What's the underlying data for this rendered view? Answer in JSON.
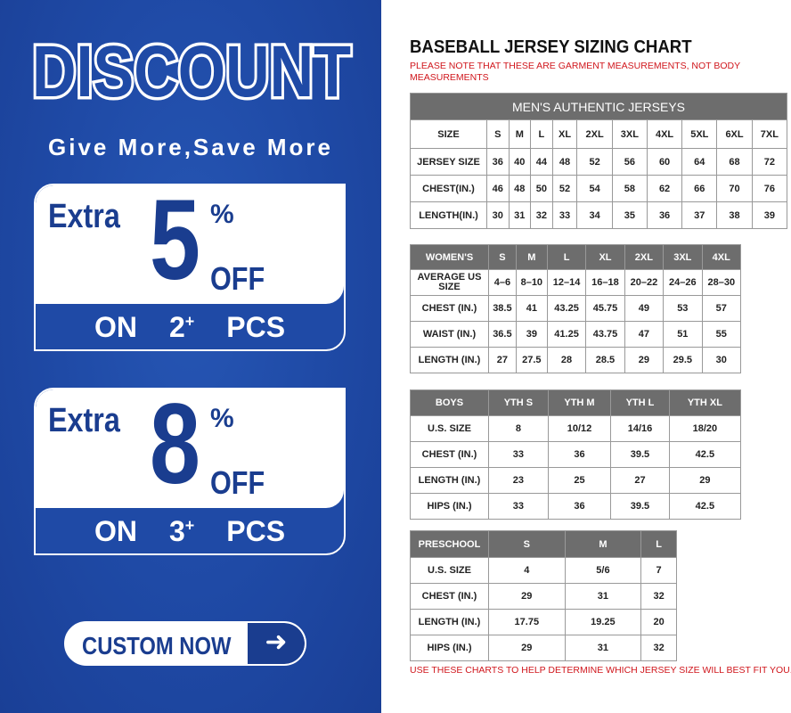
{
  "promo": {
    "headline": "DISCOUNT",
    "tagline": "Give More,Save More",
    "offers": [
      {
        "prefix": "Extra",
        "value": "5",
        "percent": "%",
        "off": "OFF",
        "on": "ON",
        "qty": "2",
        "plus": "+",
        "pcs": "PCS"
      },
      {
        "prefix": "Extra",
        "value": "8",
        "percent": "%",
        "off": "OFF",
        "on": "ON",
        "qty": "3",
        "plus": "+",
        "pcs": "PCS"
      }
    ],
    "button": "CUSTOM NOW",
    "button_icon": "arrow-right-icon",
    "colors": {
      "background": "#1f4aa6",
      "text_blue": "#1a3d8f",
      "note_red": "#d0161c",
      "header_gray": "#6d6d6d"
    }
  },
  "chart": {
    "title": "BASEBALL JERSEY SIZING CHART",
    "note": "PLEASE NOTE THAT THESE ARE GARMENT MEASUREMENTS, NOT BODY MEASUREMENTS",
    "footer": "USE THESE CHARTS TO HELP DETERMINE WHICH JERSEY SIZE WILL BEST FIT YOU."
  },
  "men": {
    "title": "MEN'S AUTHENTIC JERSEYS",
    "rows": [
      [
        "SIZE",
        "S",
        "M",
        "L",
        "XL",
        "2XL",
        "3XL",
        "4XL",
        "5XL",
        "6XL",
        "7XL"
      ],
      [
        "JERSEY SIZE",
        "36",
        "40",
        "44",
        "48",
        "52",
        "56",
        "60",
        "64",
        "68",
        "72"
      ],
      [
        "CHEST(IN.)",
        "46",
        "48",
        "50",
        "52",
        "54",
        "58",
        "62",
        "66",
        "70",
        "76"
      ],
      [
        "LENGTH(IN.)",
        "30",
        "31",
        "32",
        "33",
        "34",
        "35",
        "36",
        "37",
        "38",
        "39"
      ]
    ]
  },
  "women": {
    "header": [
      "WOMEN'S",
      "S",
      "M",
      "L",
      "XL",
      "2XL",
      "3XL",
      "4XL"
    ],
    "rows": [
      [
        "AVERAGE US SIZE",
        "4–6",
        "8–10",
        "12–14",
        "16–18",
        "20–22",
        "24–26",
        "28–30"
      ],
      [
        "CHEST (IN.)",
        "38.5",
        "41",
        "43.25",
        "45.75",
        "49",
        "53",
        "57"
      ],
      [
        "WAIST (IN.)",
        "36.5",
        "39",
        "41.25",
        "43.75",
        "47",
        "51",
        "55"
      ],
      [
        "LENGTH (IN.)",
        "27",
        "27.5",
        "28",
        "28.5",
        "29",
        "29.5",
        "30"
      ]
    ]
  },
  "boys": {
    "header": [
      "BOYS",
      "YTH S",
      "YTH M",
      "YTH L",
      "YTH XL"
    ],
    "rows": [
      [
        "U.S. SIZE",
        "8",
        "10/12",
        "14/16",
        "18/20"
      ],
      [
        "CHEST (IN.)",
        "33",
        "36",
        "39.5",
        "42.5"
      ],
      [
        "LENGTH (IN.)",
        "23",
        "25",
        "27",
        "29"
      ],
      [
        "HIPS (IN.)",
        "33",
        "36",
        "39.5",
        "42.5"
      ]
    ]
  },
  "preschool": {
    "header": [
      "PRESCHOOL",
      "S",
      "M",
      "L"
    ],
    "rows": [
      [
        "U.S. SIZE",
        "4",
        "5/6",
        "7"
      ],
      [
        "CHEST (IN.)",
        "29",
        "31",
        "32"
      ],
      [
        "LENGTH (IN.)",
        "17.75",
        "19.25",
        "20"
      ],
      [
        "HIPS (IN.)",
        "29",
        "31",
        "32"
      ]
    ]
  }
}
